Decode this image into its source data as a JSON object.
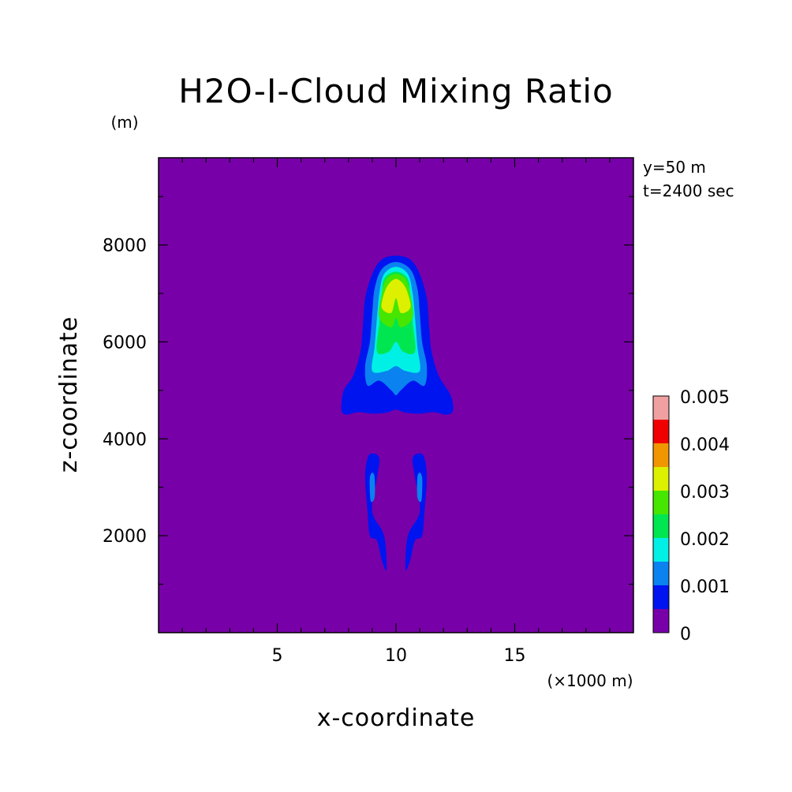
{
  "chart_data": {
    "type": "contour",
    "title": "H2O-I-Cloud Mixing Ratio",
    "xlabel": "x-coordinate",
    "ylabel": "z-coordinate",
    "x_unit": "(×1000 m)",
    "y_unit": "(m)",
    "annotations": [
      "y=50 m",
      "t=2400 sec"
    ],
    "xlim": [
      0,
      20
    ],
    "ylim": [
      0,
      9800
    ],
    "x_ticks": [
      5,
      10,
      15
    ],
    "y_ticks": [
      2000,
      4000,
      6000,
      8000
    ],
    "grid": false,
    "background_value": 0,
    "background_color": "#7800A8",
    "colorbar": {
      "levels": [
        0,
        0.0005,
        0.001,
        0.0015,
        0.002,
        0.0025,
        0.003,
        0.0035,
        0.004,
        0.0045,
        0.005
      ],
      "labels": [
        "0",
        "0.001",
        "0.002",
        "0.003",
        "0.004",
        "0.005"
      ],
      "label_values": [
        0,
        0.001,
        0.002,
        0.003,
        0.004,
        0.005
      ],
      "colors": [
        "#7800A8",
        "#0014F0",
        "#0A82F0",
        "#00F0E6",
        "#00E650",
        "#46E600",
        "#DCF000",
        "#F09600",
        "#F00000",
        "#F0A0A0"
      ]
    },
    "contour_regions": [
      {
        "level_index": 1,
        "points": [
          [
            7.7,
            4600
          ],
          [
            7.9,
            4500
          ],
          [
            8.4,
            4550
          ],
          [
            9.0,
            4520
          ],
          [
            9.6,
            4540
          ],
          [
            10.0,
            4600
          ],
          [
            10.4,
            4540
          ],
          [
            11.0,
            4520
          ],
          [
            11.6,
            4550
          ],
          [
            12.1,
            4500
          ],
          [
            12.4,
            4580
          ],
          [
            12.3,
            4900
          ],
          [
            11.8,
            5300
          ],
          [
            11.5,
            5800
          ],
          [
            11.4,
            6300
          ],
          [
            11.3,
            6900
          ],
          [
            11.0,
            7400
          ],
          [
            10.6,
            7700
          ],
          [
            10.0,
            7780
          ],
          [
            9.4,
            7700
          ],
          [
            9.0,
            7400
          ],
          [
            8.7,
            6900
          ],
          [
            8.6,
            6300
          ],
          [
            8.5,
            5800
          ],
          [
            8.2,
            5300
          ],
          [
            7.8,
            5000
          ]
        ]
      },
      {
        "level_index": 2,
        "points": [
          [
            8.8,
            5100
          ],
          [
            9.3,
            5200
          ],
          [
            9.8,
            5000
          ],
          [
            10.0,
            4900
          ],
          [
            10.2,
            5000
          ],
          [
            10.7,
            5200
          ],
          [
            11.2,
            5100
          ],
          [
            11.3,
            5500
          ],
          [
            11.1,
            6000
          ],
          [
            11.0,
            6600
          ],
          [
            10.9,
            7100
          ],
          [
            10.6,
            7500
          ],
          [
            10.0,
            7650
          ],
          [
            9.4,
            7500
          ],
          [
            9.1,
            7100
          ],
          [
            9.0,
            6600
          ],
          [
            8.9,
            6000
          ],
          [
            8.7,
            5500
          ]
        ]
      },
      {
        "level_index": 3,
        "points": [
          [
            9.0,
            5400
          ],
          [
            9.6,
            5400
          ],
          [
            10.0,
            5500
          ],
          [
            10.4,
            5400
          ],
          [
            11.0,
            5400
          ],
          [
            10.9,
            5900
          ],
          [
            10.8,
            6500
          ],
          [
            10.7,
            7000
          ],
          [
            10.5,
            7400
          ],
          [
            10.0,
            7550
          ],
          [
            9.5,
            7400
          ],
          [
            9.3,
            7000
          ],
          [
            9.2,
            6500
          ],
          [
            9.1,
            5900
          ]
        ]
      },
      {
        "level_index": 4,
        "points": [
          [
            9.2,
            5800
          ],
          [
            9.7,
            5800
          ],
          [
            10.0,
            6000
          ],
          [
            10.3,
            5800
          ],
          [
            10.8,
            5800
          ],
          [
            10.7,
            6400
          ],
          [
            10.6,
            6900
          ],
          [
            10.5,
            7300
          ],
          [
            10.0,
            7450
          ],
          [
            9.5,
            7300
          ],
          [
            9.4,
            6900
          ],
          [
            9.3,
            6400
          ]
        ]
      },
      {
        "level_index": 5,
        "points": [
          [
            9.3,
            6500
          ],
          [
            9.8,
            6300
          ],
          [
            10.0,
            6500
          ],
          [
            10.2,
            6300
          ],
          [
            10.7,
            6500
          ],
          [
            10.6,
            7000
          ],
          [
            10.4,
            7300
          ],
          [
            10.0,
            7400
          ],
          [
            9.6,
            7300
          ],
          [
            9.4,
            7000
          ]
        ]
      },
      {
        "level_index": 6,
        "points": [
          [
            9.4,
            6700
          ],
          [
            9.8,
            6600
          ],
          [
            10.0,
            6900
          ],
          [
            10.2,
            6600
          ],
          [
            10.6,
            6700
          ],
          [
            10.5,
            7000
          ],
          [
            10.3,
            7200
          ],
          [
            10.0,
            7300
          ],
          [
            9.7,
            7200
          ],
          [
            9.5,
            7000
          ]
        ]
      },
      {
        "level_index": 1,
        "points": [
          [
            8.8,
            3600
          ],
          [
            9.0,
            3700
          ],
          [
            9.3,
            3600
          ],
          [
            9.2,
            3200
          ],
          [
            9.0,
            2500
          ],
          [
            9.5,
            2000
          ],
          [
            9.6,
            1300
          ],
          [
            9.4,
            1500
          ],
          [
            9.2,
            1900
          ],
          [
            8.9,
            2000
          ],
          [
            8.8,
            2500
          ],
          [
            8.7,
            3200
          ]
        ]
      },
      {
        "level_index": 1,
        "points": [
          [
            11.2,
            3600
          ],
          [
            11.0,
            3700
          ],
          [
            10.7,
            3600
          ],
          [
            10.8,
            3200
          ],
          [
            11.0,
            2500
          ],
          [
            10.5,
            2000
          ],
          [
            10.4,
            1300
          ],
          [
            10.6,
            1500
          ],
          [
            10.8,
            1900
          ],
          [
            11.1,
            2000
          ],
          [
            11.2,
            2500
          ],
          [
            11.3,
            3200
          ]
        ]
      },
      {
        "level_index": 2,
        "points": [
          [
            8.9,
            3200
          ],
          [
            9.0,
            3300
          ],
          [
            9.1,
            3200
          ],
          [
            9.1,
            2800
          ],
          [
            8.95,
            2700
          ],
          [
            8.9,
            2900
          ]
        ]
      },
      {
        "level_index": 2,
        "points": [
          [
            11.1,
            3200
          ],
          [
            11.0,
            3300
          ],
          [
            10.9,
            3200
          ],
          [
            10.9,
            2800
          ],
          [
            11.05,
            2700
          ],
          [
            11.1,
            2900
          ]
        ]
      }
    ]
  }
}
